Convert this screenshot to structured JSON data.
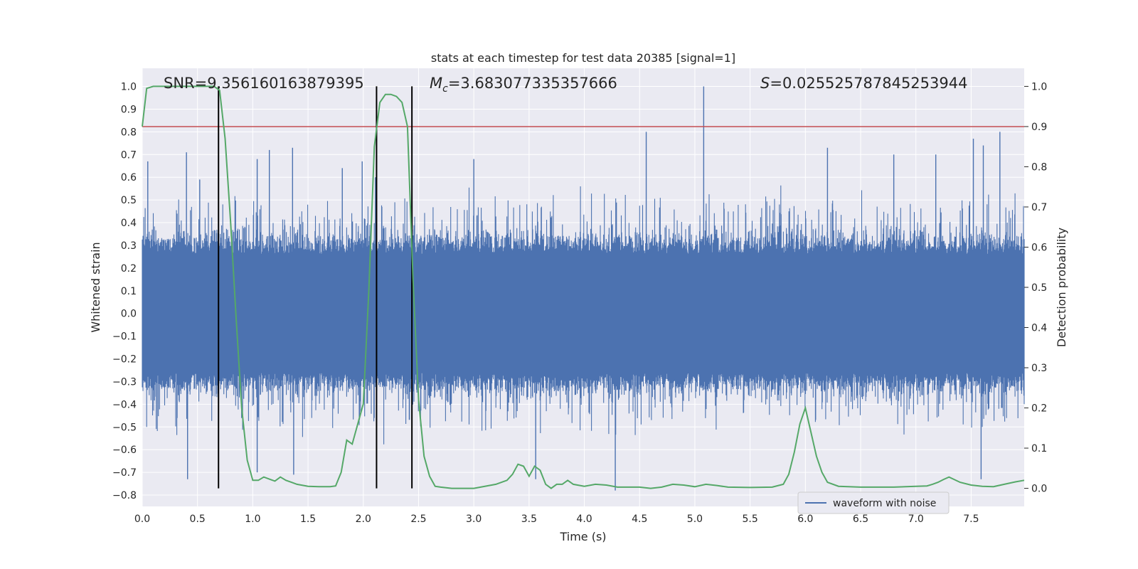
{
  "chart_data": {
    "type": "line",
    "title": "stats at each timestep for test data 20385 [signal=1]",
    "xlabel": "Time (s)",
    "ylabel": "Whitened strain",
    "y2label": "Detection probability",
    "xlim": [
      0.0,
      7.98
    ],
    "ylim": [
      -0.85,
      1.08
    ],
    "y2lim": [
      -0.045,
      1.045
    ],
    "x_ticks": [
      "0.0",
      "0.5",
      "1.0",
      "1.5",
      "2.0",
      "2.5",
      "3.0",
      "3.5",
      "4.0",
      "4.5",
      "5.0",
      "5.5",
      "6.0",
      "6.5",
      "7.0",
      "7.5"
    ],
    "y_ticks": [
      "−0.8",
      "−0.7",
      "−0.6",
      "−0.5",
      "−0.4",
      "−0.3",
      "−0.2",
      "−0.1",
      "0.0",
      "0.1",
      "0.2",
      "0.3",
      "0.4",
      "0.5",
      "0.6",
      "0.7",
      "0.8",
      "0.9",
      "1.0"
    ],
    "y2_ticks": [
      "0.0",
      "0.1",
      "0.2",
      "0.3",
      "0.4",
      "0.5",
      "0.6",
      "0.7",
      "0.8",
      "0.9",
      "1.0"
    ],
    "annotations": {
      "snr": "SNR=9.356160163879395",
      "mc_symbol": "M",
      "mc_sub": "c",
      "mc_value": "=3.683077335357666",
      "s_symbol": "S",
      "s_value": "=0.025525787845253944"
    },
    "threshold_probability": 0.9,
    "vertical_lines_x": [
      0.69,
      2.12,
      2.44
    ],
    "legend": {
      "label": "waveform with noise",
      "position": "lower-right"
    },
    "series": [
      {
        "name": "waveform with noise",
        "axis": "left",
        "color": "#4c72b0",
        "envelope_note": "dense noise time series, ~0.4 typical amplitude, occasional spikes",
        "spikes": [
          {
            "x": 0.05,
            "v": 0.67
          },
          {
            "x": 0.4,
            "v": 0.71
          },
          {
            "x": 0.52,
            "v": 0.59
          },
          {
            "x": 1.04,
            "v": 0.68
          },
          {
            "x": 1.04,
            "v": -0.7
          },
          {
            "x": 1.15,
            "v": 0.72
          },
          {
            "x": 1.36,
            "v": 0.73
          },
          {
            "x": 1.37,
            "v": -0.71
          },
          {
            "x": 0.41,
            "v": -0.73
          },
          {
            "x": 1.81,
            "v": 0.64
          },
          {
            "x": 1.99,
            "v": 0.67
          },
          {
            "x": 2.11,
            "v": 0.6
          },
          {
            "x": 3.0,
            "v": 0.68
          },
          {
            "x": 3.56,
            "v": -0.73
          },
          {
            "x": 4.28,
            "v": -0.78
          },
          {
            "x": 4.56,
            "v": 0.8
          },
          {
            "x": 5.08,
            "v": 1.0
          },
          {
            "x": 6.2,
            "v": 0.73
          },
          {
            "x": 6.8,
            "v": 0.7
          },
          {
            "x": 7.18,
            "v": 0.7
          },
          {
            "x": 7.52,
            "v": 0.77
          },
          {
            "x": 7.59,
            "v": -0.73
          },
          {
            "x": 7.61,
            "v": 0.74
          },
          {
            "x": 7.76,
            "v": 0.8
          }
        ]
      },
      {
        "name": "detection probability",
        "axis": "right",
        "color": "#55a868",
        "x": [
          0.0,
          0.04,
          0.1,
          0.2,
          0.3,
          0.4,
          0.5,
          0.6,
          0.65,
          0.7,
          0.75,
          0.8,
          0.85,
          0.9,
          0.95,
          1.0,
          1.05,
          1.1,
          1.2,
          1.25,
          1.3,
          1.35,
          1.4,
          1.5,
          1.6,
          1.7,
          1.75,
          1.8,
          1.85,
          1.9,
          1.95,
          2.0,
          2.05,
          2.1,
          2.15,
          2.2,
          2.25,
          2.3,
          2.35,
          2.4,
          2.45,
          2.5,
          2.55,
          2.6,
          2.65,
          2.7,
          2.8,
          3.0,
          3.2,
          3.3,
          3.35,
          3.4,
          3.45,
          3.5,
          3.55,
          3.6,
          3.65,
          3.7,
          3.75,
          3.8,
          3.85,
          3.9,
          4.0,
          4.1,
          4.2,
          4.3,
          4.5,
          4.6,
          4.7,
          4.8,
          4.9,
          5.0,
          5.1,
          5.2,
          5.3,
          5.5,
          5.7,
          5.8,
          5.85,
          5.9,
          5.95,
          6.0,
          6.05,
          6.1,
          6.15,
          6.2,
          6.3,
          6.5,
          6.8,
          7.0,
          7.1,
          7.15,
          7.2,
          7.25,
          7.3,
          7.4,
          7.5,
          7.6,
          7.7,
          7.8,
          7.9,
          7.98
        ],
        "values": [
          0.9,
          0.995,
          1.0,
          1.0,
          1.0,
          1.0,
          1.0,
          1.0,
          1.0,
          0.99,
          0.87,
          0.66,
          0.42,
          0.2,
          0.07,
          0.02,
          0.02,
          0.028,
          0.018,
          0.028,
          0.02,
          0.015,
          0.01,
          0.005,
          0.004,
          0.004,
          0.006,
          0.04,
          0.12,
          0.11,
          0.16,
          0.21,
          0.49,
          0.85,
          0.96,
          0.98,
          0.98,
          0.975,
          0.96,
          0.9,
          0.52,
          0.22,
          0.08,
          0.03,
          0.005,
          0.003,
          0.0,
          0.0,
          0.01,
          0.02,
          0.035,
          0.06,
          0.055,
          0.03,
          0.055,
          0.045,
          0.01,
          0.0,
          0.01,
          0.01,
          0.02,
          0.01,
          0.005,
          0.01,
          0.008,
          0.003,
          0.003,
          0.0,
          0.003,
          0.01,
          0.008,
          0.004,
          0.01,
          0.007,
          0.003,
          0.002,
          0.003,
          0.01,
          0.035,
          0.09,
          0.16,
          0.2,
          0.14,
          0.08,
          0.04,
          0.015,
          0.005,
          0.003,
          0.003,
          0.005,
          0.006,
          0.01,
          0.015,
          0.022,
          0.028,
          0.015,
          0.008,
          0.005,
          0.004,
          0.01,
          0.016,
          0.02
        ]
      }
    ]
  }
}
